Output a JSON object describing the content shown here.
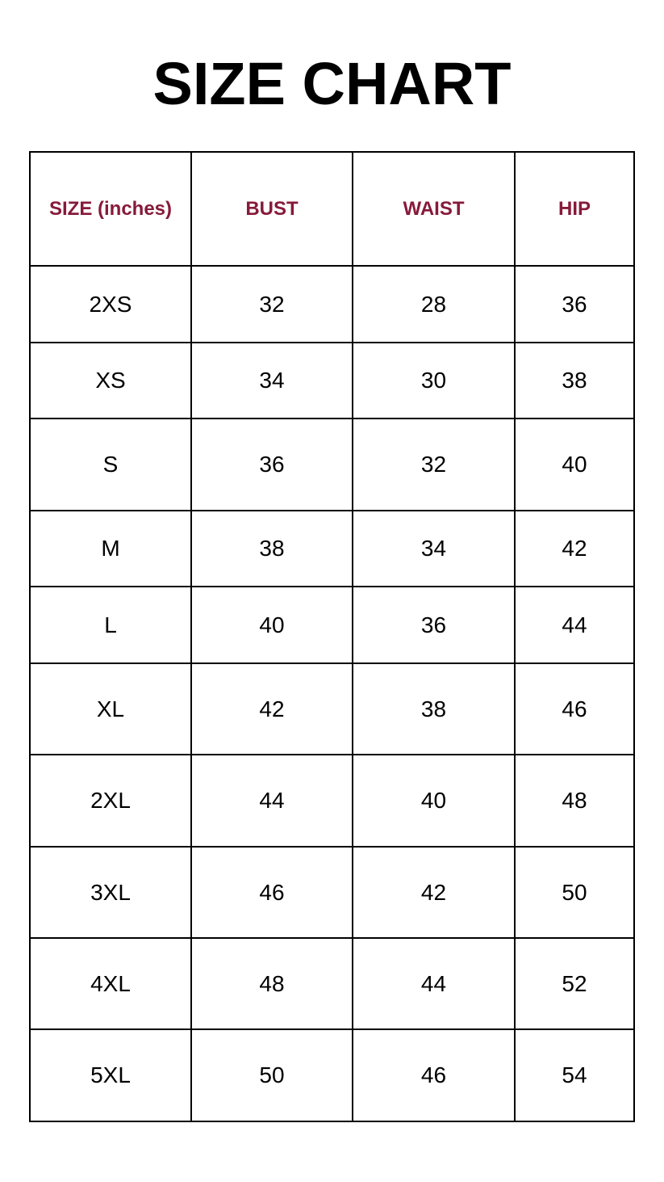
{
  "title": "SIZE CHART",
  "header_color": "#861a3a",
  "chart_data": {
    "type": "table",
    "columns": [
      "SIZE (inches)",
      "BUST",
      "WAIST",
      "HIP"
    ],
    "rows": [
      [
        "2XS",
        "32",
        "28",
        "36"
      ],
      [
        "XS",
        "34",
        "30",
        "38"
      ],
      [
        "S",
        "36",
        "32",
        "40"
      ],
      [
        "M",
        "38",
        "34",
        "42"
      ],
      [
        "L",
        "40",
        "36",
        "44"
      ],
      [
        "XL",
        "42",
        "38",
        "46"
      ],
      [
        "2XL",
        "44",
        "40",
        "48"
      ],
      [
        "3XL",
        "46",
        "42",
        "50"
      ],
      [
        "4XL",
        "48",
        "44",
        "52"
      ],
      [
        "5XL",
        "50",
        "46",
        "54"
      ]
    ]
  }
}
